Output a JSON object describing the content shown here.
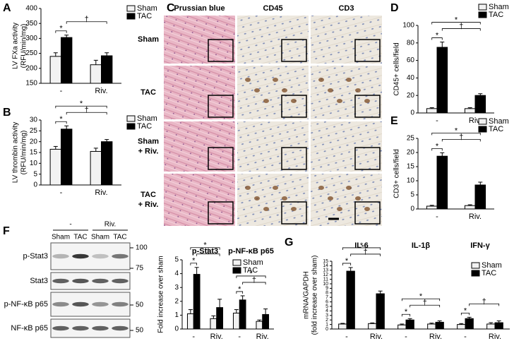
{
  "chart_data": [
    {
      "type": "bar",
      "label": "A",
      "ylabel": [
        "LV FXa activity",
        "(RFU/min/mg)"
      ],
      "categories": [
        "-",
        "Riv."
      ],
      "series": [
        {
          "name": "Sham",
          "color": "#f2f2f2",
          "values": [
            240,
            212
          ],
          "errors": [
            12,
            15
          ]
        },
        {
          "name": "TAC",
          "color": "#000000",
          "values": [
            303,
            242
          ],
          "errors": [
            8,
            10
          ]
        }
      ],
      "ylim": [
        150,
        400
      ],
      "yticks": [
        150,
        200,
        250,
        300,
        350,
        400
      ],
      "annotations": [
        [
          "*",
          "†"
        ]
      ]
    },
    {
      "type": "bar",
      "label": "B",
      "ylabel": [
        "LV thrombin activity",
        "(RFU/min/mg)"
      ],
      "categories": [
        "-",
        "Riv."
      ],
      "series": [
        {
          "name": "Sham",
          "color": "#f2f2f2",
          "values": [
            16.5,
            15.5
          ],
          "errors": [
            1.3,
            1.5
          ]
        },
        {
          "name": "TAC",
          "color": "#000000",
          "values": [
            25.8,
            20
          ],
          "errors": [
            1.5,
            1
          ]
        }
      ],
      "ylim": [
        0,
        30
      ],
      "yticks": [
        0,
        5,
        10,
        15,
        20,
        25,
        30
      ],
      "annotations": [
        [
          "*",
          "†",
          "*"
        ]
      ]
    },
    {
      "type": "bar",
      "label": "D",
      "ylabel": [
        "CD45+ cells/field"
      ],
      "categories": [
        "-",
        "Riv."
      ],
      "series": [
        {
          "name": "Sham",
          "color": "#f2f2f2",
          "values": [
            5,
            5
          ],
          "errors": [
            1,
            1
          ]
        },
        {
          "name": "TAC",
          "color": "#000000",
          "values": [
            75,
            20
          ],
          "errors": [
            6,
            2
          ]
        }
      ],
      "ylim": [
        0,
        100
      ],
      "yticks": [
        0,
        20,
        40,
        60,
        80,
        100
      ],
      "annotations": [
        [
          "*",
          "†",
          "*"
        ]
      ]
    },
    {
      "type": "bar",
      "label": "E",
      "ylabel": [
        "CD3+ cells/field"
      ],
      "categories": [
        "-",
        "Riv."
      ],
      "series": [
        {
          "name": "Sham",
          "color": "#f2f2f2",
          "values": [
            1,
            1.2
          ],
          "errors": [
            0.3,
            0.3
          ]
        },
        {
          "name": "TAC",
          "color": "#000000",
          "values": [
            18.7,
            8.5
          ],
          "errors": [
            1.2,
            1
          ]
        }
      ],
      "ylim": [
        0,
        25
      ],
      "yticks": [
        0,
        5,
        10,
        15,
        20,
        25
      ],
      "annotations": [
        [
          "*",
          "†",
          "*"
        ]
      ]
    },
    {
      "type": "bar",
      "ylabel": [
        "Fold increase over sham"
      ],
      "groups": [
        "p-Stat3",
        "p-NF-κB p65"
      ],
      "categories": [
        "-",
        "Riv.",
        "-",
        "Riv."
      ],
      "series": [
        {
          "name": "Sham",
          "color": "#f2f2f2",
          "values": [
            1.1,
            0.75,
            1.15,
            0.55
          ],
          "errors": [
            0.3,
            0.2,
            0.25,
            0.1
          ]
        },
        {
          "name": "TAC",
          "color": "#000000",
          "values": [
            3.95,
            1.55,
            2.1,
            1.05
          ],
          "errors": [
            0.5,
            0.6,
            0.3,
            0.4
          ]
        }
      ],
      "ylim": [
        0,
        5
      ],
      "yticks": [
        0,
        1,
        2,
        3,
        4,
        5
      ],
      "annotations": [
        [
          "*",
          "†",
          "*"
        ],
        [
          "*",
          "†",
          "*"
        ]
      ]
    },
    {
      "type": "bar",
      "label": "G",
      "ylabel": [
        "mRNA/GAPDH",
        "(fold increase over sham)"
      ],
      "groups": [
        "IL-6",
        "IL-1β",
        "IFN-γ"
      ],
      "categories": [
        "-",
        "Riv.",
        "-",
        "Riv.",
        "-",
        "Riv."
      ],
      "series": [
        {
          "name": "Sham",
          "color": "#f2f2f2",
          "values": [
            1.1,
            1.2,
            0.9,
            1.1,
            1,
            1.1
          ],
          "errors": [
            0.15,
            0.15,
            0.2,
            0.2,
            0.2,
            0.3
          ]
        },
        {
          "name": "TAC",
          "color": "#000000",
          "values": [
            12.8,
            7.8,
            2,
            1.5,
            2.3,
            1.4
          ],
          "errors": [
            0.8,
            0.6,
            0.3,
            0.3,
            0.3,
            0.4
          ]
        }
      ],
      "ylim": [
        0,
        15
      ],
      "yticks": [
        0,
        1,
        2,
        3,
        4,
        5,
        6,
        7,
        8,
        9,
        10,
        11,
        12,
        13,
        14,
        15
      ],
      "annotations": [
        [
          "*",
          "†",
          "*"
        ],
        [
          "*",
          "†",
          "*"
        ],
        [
          "*",
          "†"
        ]
      ]
    }
  ],
  "panel_c": {
    "label": "C",
    "columns": [
      "Prussian blue",
      "CD45",
      "CD3"
    ],
    "rows": [
      [
        "Sham"
      ],
      [
        "TAC"
      ],
      [
        "Sham",
        "+ Riv."
      ],
      [
        "TAC",
        "+ Riv."
      ]
    ]
  },
  "panel_f_blot": {
    "label": "F",
    "groups": [
      "-",
      "Riv."
    ],
    "lanes": [
      "Sham",
      "TAC",
      "Sham",
      "TAC"
    ],
    "rows": [
      "p-Stat3",
      "Stat3",
      "p-NF-κB p65",
      "NF-κB p65"
    ],
    "markers": [
      "100",
      "75",
      "50",
      "50"
    ]
  }
}
